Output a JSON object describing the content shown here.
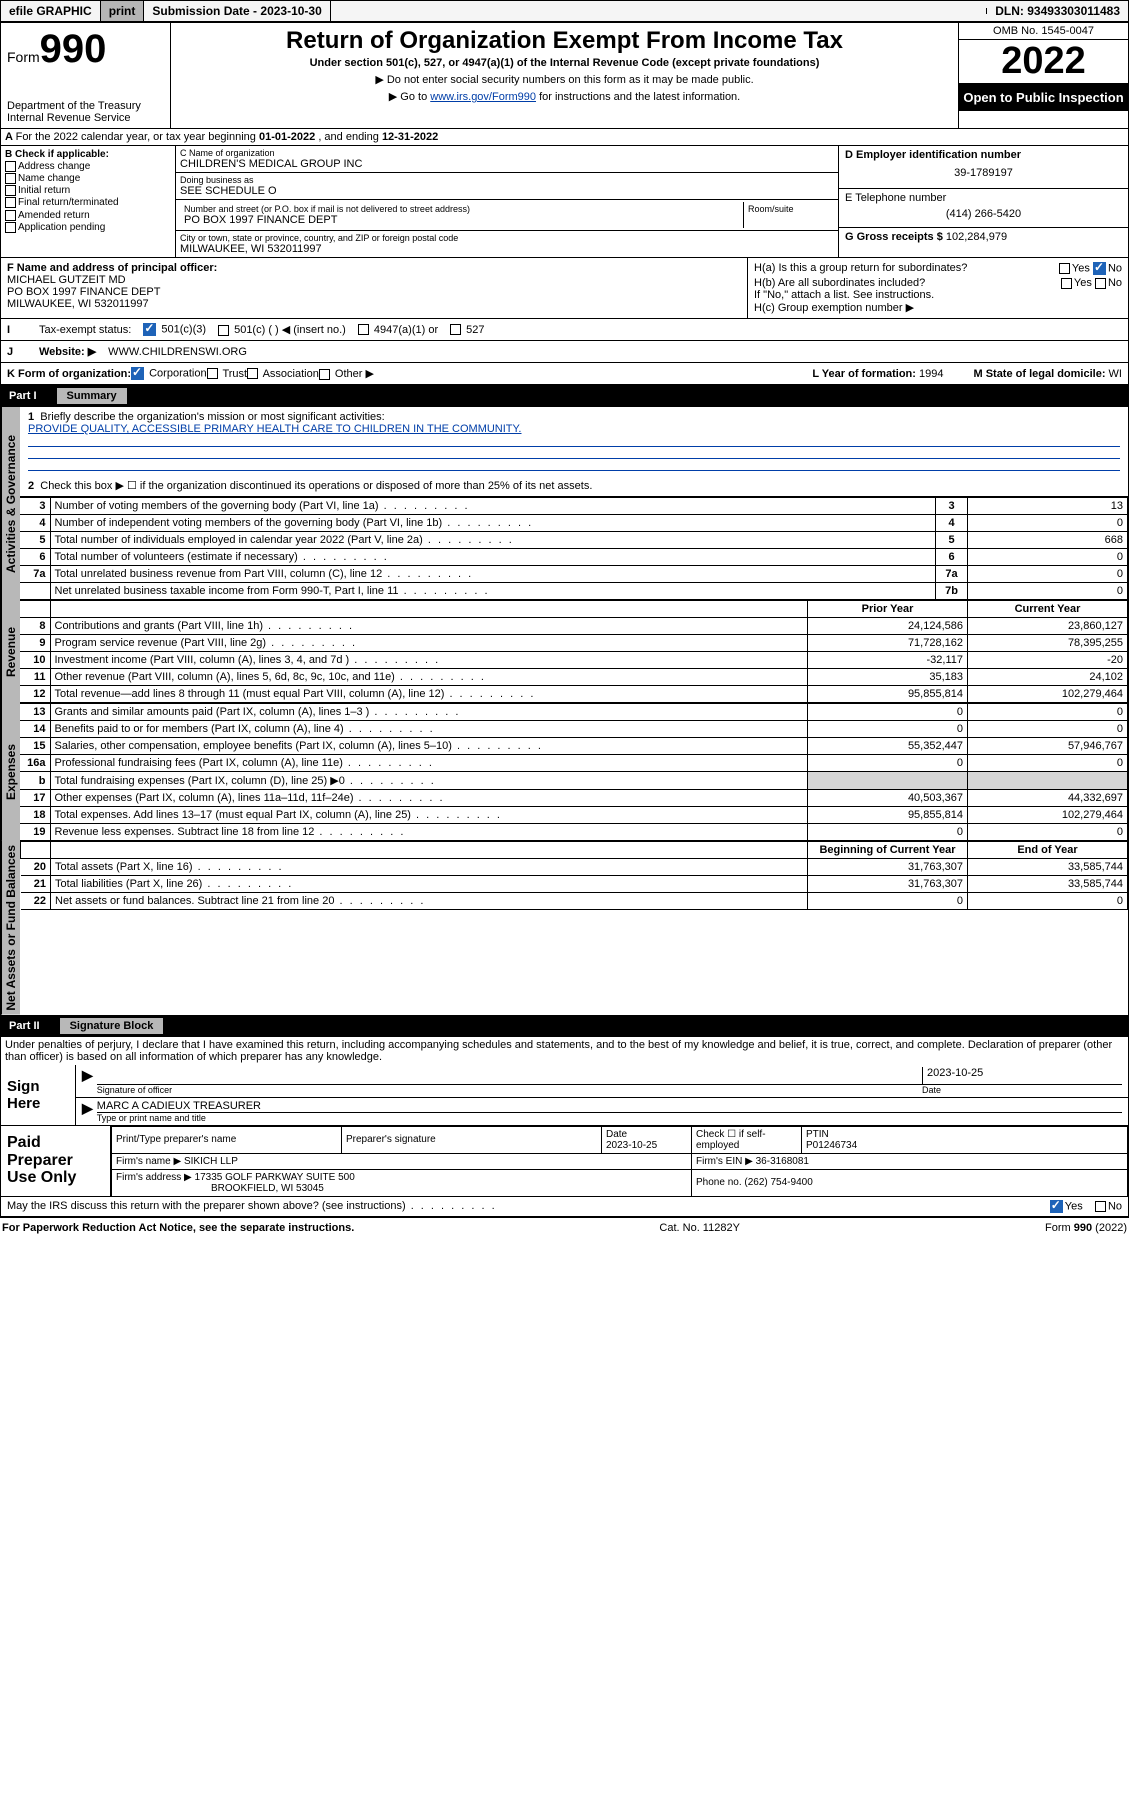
{
  "topbar": {
    "efile": "efile GRAPHIC",
    "print": "print",
    "sub_label": "Submission Date - ",
    "sub_date": "2023-10-30",
    "dln_label": "DLN: ",
    "dln": "93493303011483"
  },
  "header": {
    "form_word": "Form",
    "form_no": "990",
    "dept": "Department of the Treasury",
    "irs": "Internal Revenue Service",
    "title": "Return of Organization Exempt From Income Tax",
    "subtitle": "Under section 501(c), 527, or 4947(a)(1) of the Internal Revenue Code (except private foundations)",
    "note1": "▶ Do not enter social security numbers on this form as it may be made public.",
    "note2_pre": "▶ Go to ",
    "note2_link": "www.irs.gov/Form990",
    "note2_post": " for instructions and the latest information.",
    "omb": "OMB No. 1545-0047",
    "year": "2022",
    "inspection": "Open to Public Inspection"
  },
  "A": {
    "text": "For the 2022 calendar year, or tax year beginning ",
    "begin": "01-01-2022",
    "mid": " , and ending ",
    "end": "12-31-2022"
  },
  "B": {
    "heading": "B Check if applicable:",
    "items": [
      "Address change",
      "Name change",
      "Initial return",
      "Final return/terminated",
      "Amended return",
      "Application pending"
    ]
  },
  "C": {
    "name_label": "C Name of organization",
    "name": "CHILDREN'S MEDICAL GROUP INC",
    "dba_label": "Doing business as",
    "dba": "SEE SCHEDULE O",
    "street_label": "Number and street (or P.O. box if mail is not delivered to street address)",
    "street": "PO BOX 1997 FINANCE DEPT",
    "room_label": "Room/suite",
    "city_label": "City or town, state or province, country, and ZIP or foreign postal code",
    "city": "MILWAUKEE, WI  532011997"
  },
  "D": {
    "label": "D Employer identification number",
    "val": "39-1789197"
  },
  "E": {
    "label": "E Telephone number",
    "val": "(414) 266-5420"
  },
  "G": {
    "label": "G Gross receipts $ ",
    "val": "102,284,979"
  },
  "F": {
    "label": "F  Name and address of principal officer:",
    "name": "MICHAEL GUTZEIT MD",
    "addr1": "PO BOX 1997 FINANCE DEPT",
    "addr2": "MILWAUKEE, WI  532011997"
  },
  "H": {
    "a_label": "H(a)  Is this a group return for subordinates?",
    "a_yes": "Yes",
    "a_no": "No",
    "b_label": "H(b)  Are all subordinates included?",
    "b_note": "If \"No,\" attach a list. See instructions.",
    "c_label": "H(c)  Group exemption number ▶"
  },
  "I": {
    "label": "Tax-exempt status:",
    "opt1": "501(c)(3)",
    "opt2": "501(c) (  ) ◀ (insert no.)",
    "opt3": "4947(a)(1) or",
    "opt4": "527"
  },
  "J": {
    "label": "Website: ▶",
    "val": "WWW.CHILDRENSWI.ORG"
  },
  "K": {
    "label": "K Form of organization:",
    "opts": [
      "Corporation",
      "Trust",
      "Association",
      "Other ▶"
    ]
  },
  "L": {
    "label": "L Year of formation: ",
    "val": "1994"
  },
  "M": {
    "label": "M State of legal domicile: ",
    "val": "WI"
  },
  "partI": {
    "title": "Part I",
    "name": "Summary",
    "q1": "Briefly describe the organization's mission or most significant activities:",
    "mission": "PROVIDE QUALITY, ACCESSIBLE PRIMARY HEALTH CARE TO CHILDREN IN THE COMMUNITY.",
    "q2": "Check this box ▶ ☐  if the organization discontinued its operations or disposed of more than 25% of its net assets.",
    "lines_gov": [
      {
        "n": "3",
        "t": "Number of voting members of the governing body (Part VI, line 1a)",
        "b": "3",
        "v": "13"
      },
      {
        "n": "4",
        "t": "Number of independent voting members of the governing body (Part VI, line 1b)",
        "b": "4",
        "v": "0"
      },
      {
        "n": "5",
        "t": "Total number of individuals employed in calendar year 2022 (Part V, line 2a)",
        "b": "5",
        "v": "668"
      },
      {
        "n": "6",
        "t": "Total number of volunteers (estimate if necessary)",
        "b": "6",
        "v": "0"
      },
      {
        "n": "7a",
        "t": "Total unrelated business revenue from Part VIII, column (C), line 12",
        "b": "7a",
        "v": "0"
      },
      {
        "n": "",
        "t": "Net unrelated business taxable income from Form 990-T, Part I, line 11",
        "b": "7b",
        "v": "0"
      }
    ],
    "col_prior": "Prior Year",
    "col_curr": "Current Year",
    "rev": [
      {
        "n": "8",
        "t": "Contributions and grants (Part VIII, line 1h)",
        "p": "24,124,586",
        "c": "23,860,127"
      },
      {
        "n": "9",
        "t": "Program service revenue (Part VIII, line 2g)",
        "p": "71,728,162",
        "c": "78,395,255"
      },
      {
        "n": "10",
        "t": "Investment income (Part VIII, column (A), lines 3, 4, and 7d )",
        "p": "-32,117",
        "c": "-20"
      },
      {
        "n": "11",
        "t": "Other revenue (Part VIII, column (A), lines 5, 6d, 8c, 9c, 10c, and 11e)",
        "p": "35,183",
        "c": "24,102"
      },
      {
        "n": "12",
        "t": "Total revenue—add lines 8 through 11 (must equal Part VIII, column (A), line 12)",
        "p": "95,855,814",
        "c": "102,279,464"
      }
    ],
    "exp": [
      {
        "n": "13",
        "t": "Grants and similar amounts paid (Part IX, column (A), lines 1–3 )",
        "p": "0",
        "c": "0"
      },
      {
        "n": "14",
        "t": "Benefits paid to or for members (Part IX, column (A), line 4)",
        "p": "0",
        "c": "0"
      },
      {
        "n": "15",
        "t": "Salaries, other compensation, employee benefits (Part IX, column (A), lines 5–10)",
        "p": "55,352,447",
        "c": "57,946,767"
      },
      {
        "n": "16a",
        "t": "Professional fundraising fees (Part IX, column (A), line 11e)",
        "p": "0",
        "c": "0"
      },
      {
        "n": "b",
        "t": "Total fundraising expenses (Part IX, column (D), line 25) ▶0",
        "p": "",
        "c": "",
        "shade": true
      },
      {
        "n": "17",
        "t": "Other expenses (Part IX, column (A), lines 11a–11d, 11f–24e)",
        "p": "40,503,367",
        "c": "44,332,697"
      },
      {
        "n": "18",
        "t": "Total expenses. Add lines 13–17 (must equal Part IX, column (A), line 25)",
        "p": "95,855,814",
        "c": "102,279,464"
      },
      {
        "n": "19",
        "t": "Revenue less expenses. Subtract line 18 from line 12",
        "p": "0",
        "c": "0"
      }
    ],
    "col_begin": "Beginning of Current Year",
    "col_end": "End of Year",
    "net": [
      {
        "n": "20",
        "t": "Total assets (Part X, line 16)",
        "p": "31,763,307",
        "c": "33,585,744"
      },
      {
        "n": "21",
        "t": "Total liabilities (Part X, line 26)",
        "p": "31,763,307",
        "c": "33,585,744"
      },
      {
        "n": "22",
        "t": "Net assets or fund balances. Subtract line 21 from line 20",
        "p": "0",
        "c": "0"
      }
    ]
  },
  "partII": {
    "title": "Part II",
    "name": "Signature Block",
    "decl": "Under penalties of perjury, I declare that I have examined this return, including accompanying schedules and statements, and to the best of my knowledge and belief, it is true, correct, and complete. Declaration of preparer (other than officer) is based on all information of which preparer has any knowledge."
  },
  "sign": {
    "label": "Sign Here",
    "sig_of": "Signature of officer",
    "date": "2023-10-25",
    "date_lbl": "Date",
    "name": "MARC A CADIEUX  TREASURER",
    "name_lbl": "Type or print name and title"
  },
  "paid": {
    "label": "Paid Preparer Use Only",
    "h1": "Print/Type preparer's name",
    "h2": "Preparer's signature",
    "h3": "Date",
    "h3v": "2023-10-25",
    "h4": "Check ☐ if self-employed",
    "h5": "PTIN",
    "h5v": "P01246734",
    "firm_lbl": "Firm's name    ▶ ",
    "firm": "SIKICH LLP",
    "ein_lbl": "Firm's EIN ▶ ",
    "ein": "36-3168081",
    "addr_lbl": "Firm's address ▶ ",
    "addr1": "17335 GOLF PARKWAY SUITE 500",
    "addr2": "BROOKFIELD, WI  53045",
    "phone_lbl": "Phone no. ",
    "phone": "(262) 754-9400"
  },
  "footer": {
    "discuss": "May the IRS discuss this return with the preparer shown above? (see instructions)",
    "yes": "Yes",
    "no": "No",
    "pra": "For Paperwork Reduction Act Notice, see the separate instructions.",
    "cat": "Cat. No. 11282Y",
    "form": "Form 990 (2022)"
  },
  "tabs": {
    "gov": "Activities & Governance",
    "rev": "Revenue",
    "exp": "Expenses",
    "net": "Net Assets or Fund Balances"
  }
}
